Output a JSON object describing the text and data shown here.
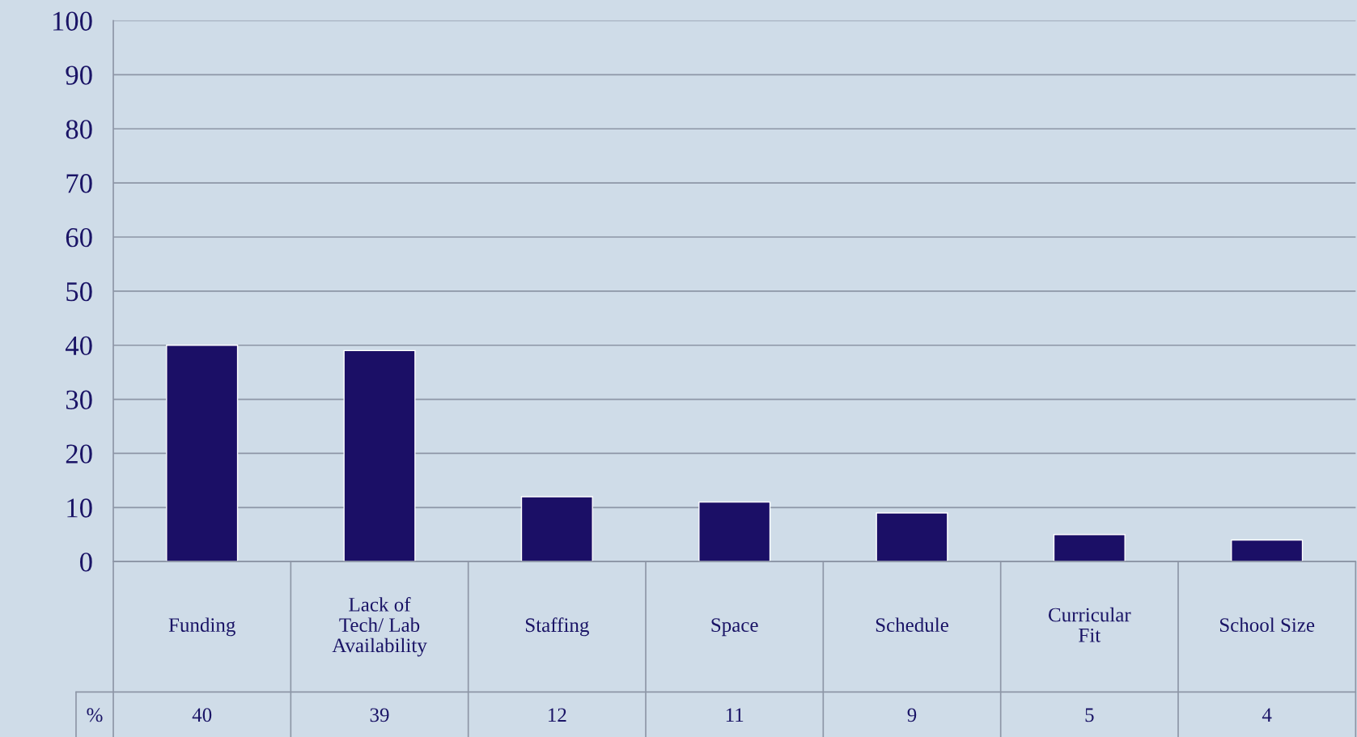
{
  "chart_data": {
    "type": "bar",
    "categories": [
      "Funding",
      "Lack of\nTech/ Lab\nAvailability",
      "Staffing",
      "Space",
      "Schedule",
      "Curricular\nFit",
      "School Size"
    ],
    "values": [
      40,
      39,
      12,
      11,
      9,
      5,
      4
    ],
    "color": "#1b0f66",
    "ylim": [
      0,
      100
    ],
    "yticks": [
      0,
      10,
      20,
      30,
      40,
      50,
      60,
      70,
      80,
      90,
      100
    ],
    "grid": "y",
    "data_labels": true,
    "annotations": [
      "%"
    ]
  }
}
